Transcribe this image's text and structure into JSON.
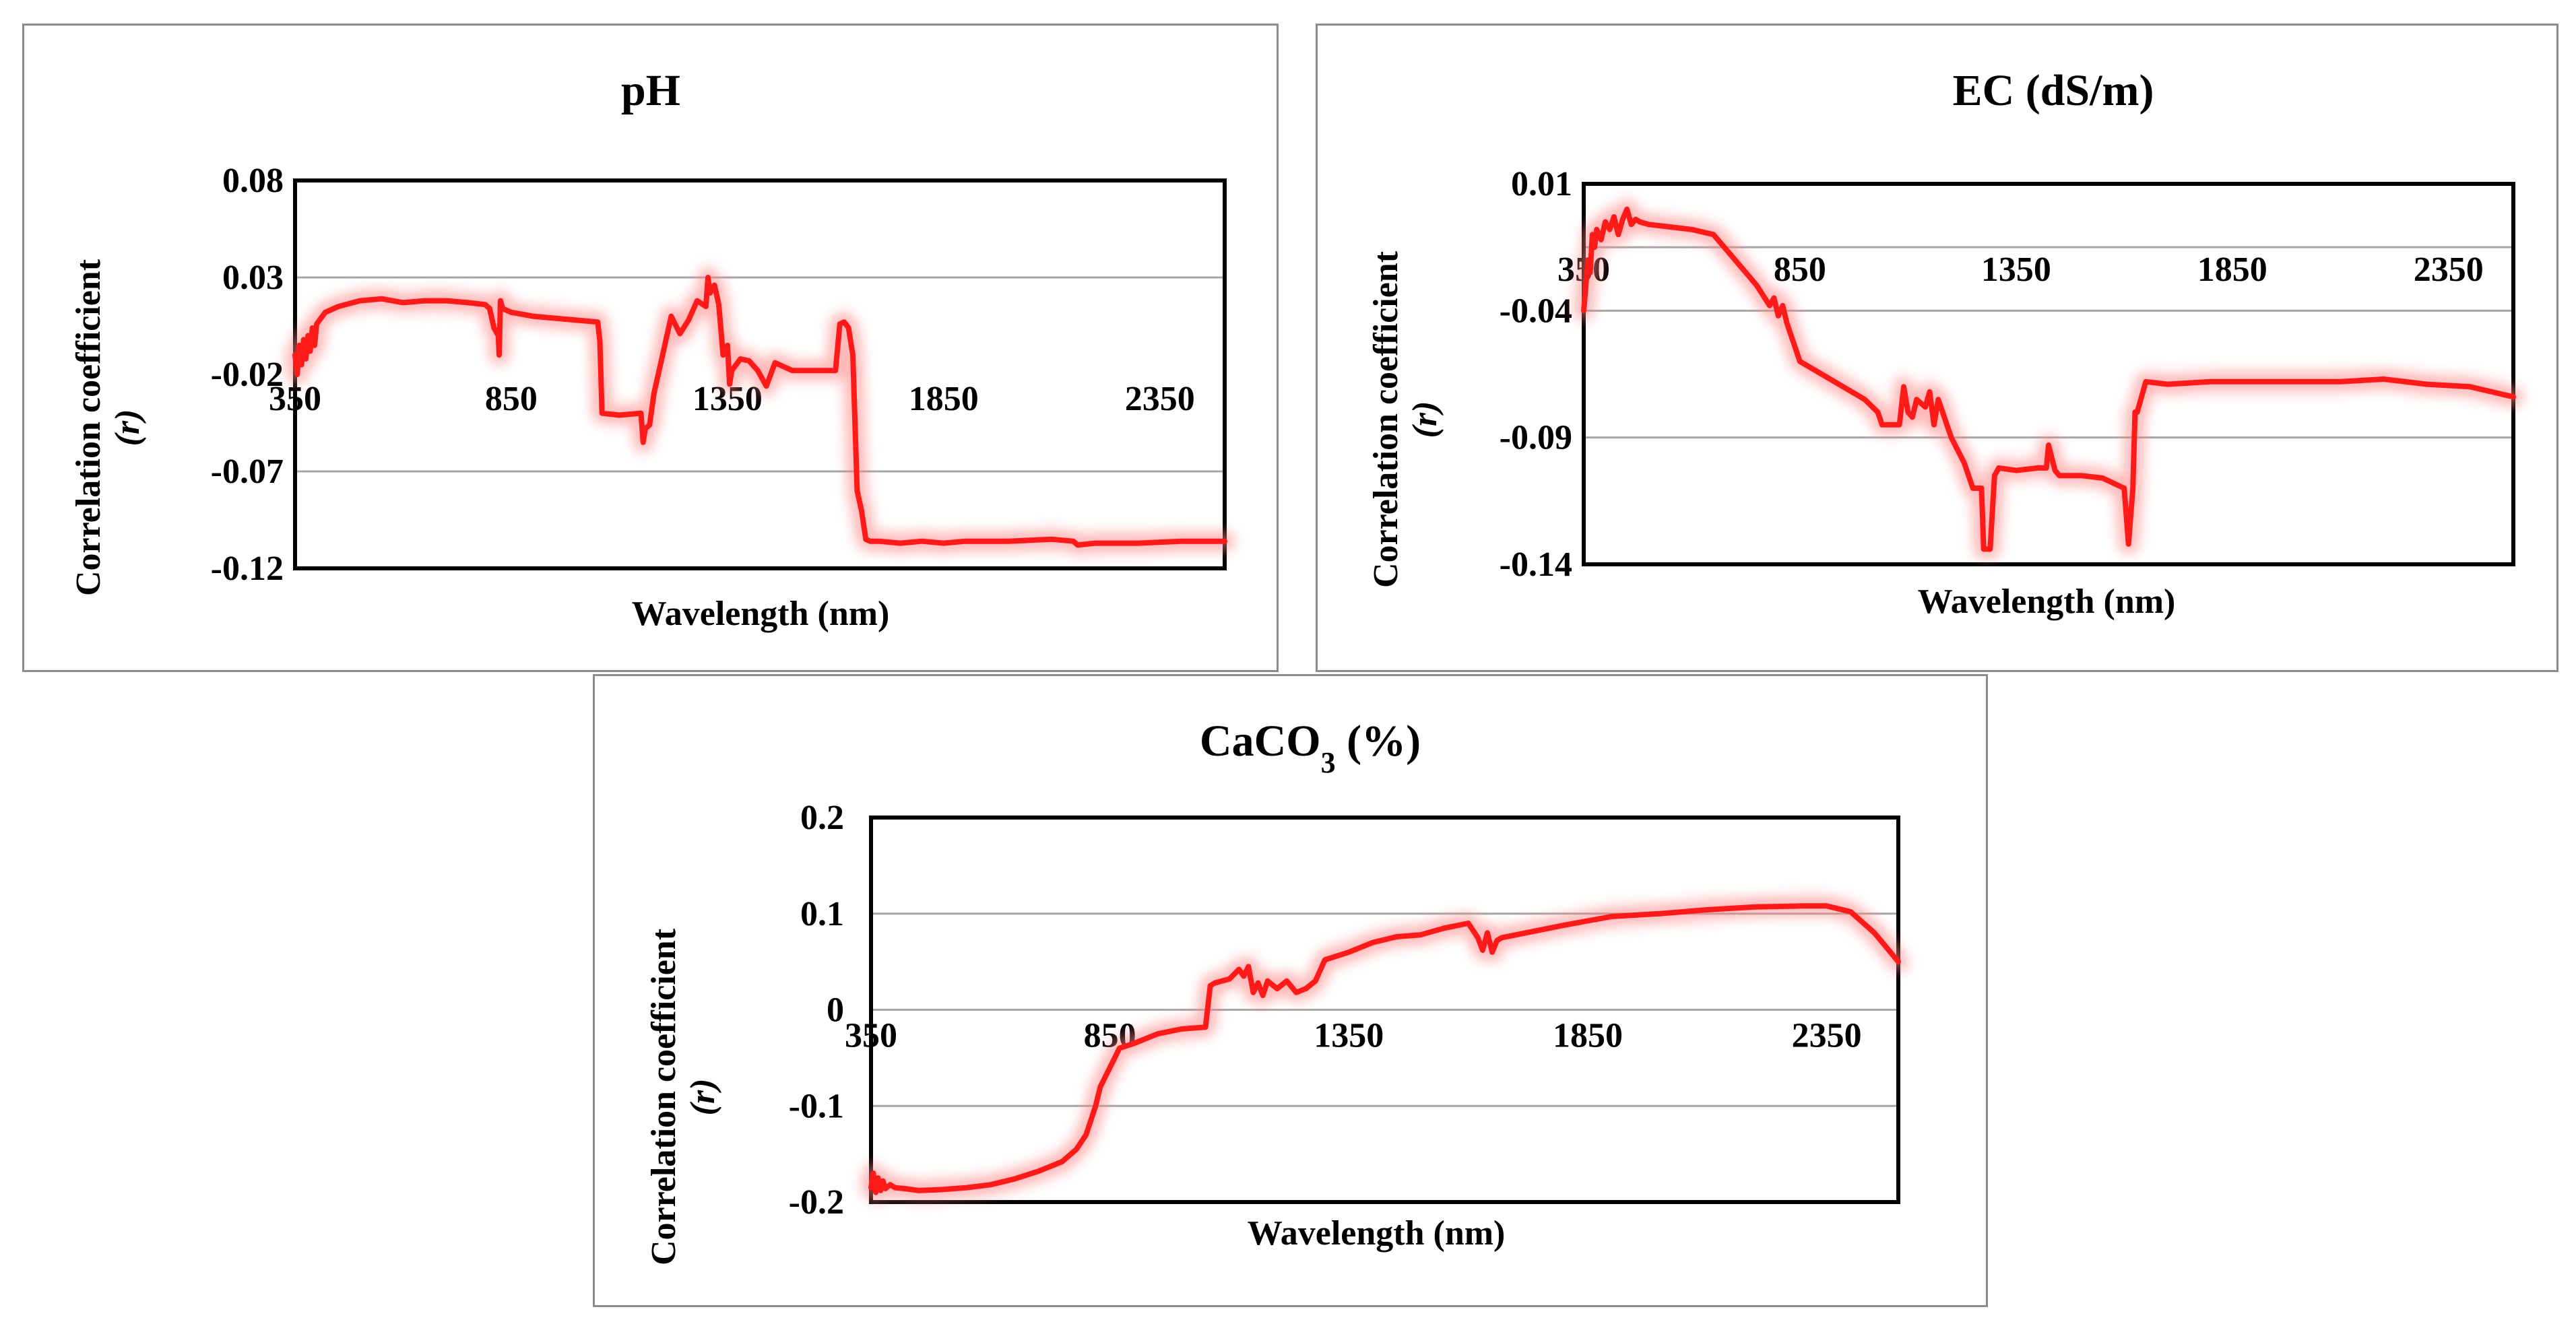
{
  "colors": {
    "series": "#ff1a1a",
    "glow": "#ff8080",
    "gridline": "#a6a6a6",
    "frame": "#000000",
    "panel_border": "#8c8c8c"
  },
  "chart_data": [
    {
      "id": "ph",
      "type": "line",
      "title": "pH",
      "title_sub": "",
      "title_suffix": "",
      "xlabel": "Wavelength (nm)",
      "ylabel": "Correlation coefficient",
      "ylabel_symbol": "(r)",
      "xlim": [
        350,
        2500
      ],
      "ylim": [
        -0.12,
        0.08
      ],
      "xticks": [
        350,
        850,
        1350,
        1850,
        2350
      ],
      "xtick_labels": [
        "350",
        "850",
        "1350",
        "1850",
        "2350"
      ],
      "yticks": [
        0.08,
        0.03,
        -0.02,
        -0.07,
        -0.12
      ],
      "ytick_labels": [
        "0.08",
        "0.03",
        "-0.02",
        "-0.07",
        "-0.12"
      ],
      "gridlines": [
        0.03,
        -0.07
      ],
      "xaxis_at": -0.02,
      "series": [
        {
          "name": "pH",
          "x": [
            350,
            355,
            360,
            365,
            370,
            375,
            380,
            385,
            390,
            395,
            400,
            420,
            450,
            500,
            550,
            600,
            650,
            700,
            750,
            790,
            800,
            810,
            820,
            822,
            825,
            830,
            850,
            900,
            950,
            1000,
            1050,
            1055,
            1060,
            1100,
            1150,
            1155,
            1160,
            1170,
            1180,
            1200,
            1220,
            1240,
            1260,
            1280,
            1300,
            1305,
            1310,
            1320,
            1330,
            1340,
            1350,
            1355,
            1360,
            1380,
            1400,
            1420,
            1440,
            1460,
            1480,
            1500,
            1550,
            1600,
            1610,
            1620,
            1630,
            1640,
            1650,
            1660,
            1670,
            1680,
            1700,
            1750,
            1800,
            1850,
            1900,
            2000,
            2100,
            2150,
            2160,
            2200,
            2300,
            2400,
            2500
          ],
          "y": [
            -0.01,
            -0.02,
            -0.005,
            -0.015,
            -0.002,
            -0.012,
            0.0,
            -0.008,
            0.004,
            -0.005,
            0.006,
            0.012,
            0.015,
            0.018,
            0.019,
            0.017,
            0.018,
            0.018,
            0.017,
            0.016,
            0.014,
            0.004,
            0.0,
            -0.01,
            0.018,
            0.014,
            0.012,
            0.01,
            0.009,
            0.008,
            0.007,
            -0.003,
            -0.04,
            -0.041,
            -0.04,
            -0.055,
            -0.048,
            -0.046,
            -0.03,
            -0.01,
            0.01,
            0.001,
            0.008,
            0.018,
            0.015,
            0.03,
            0.022,
            0.026,
            0.016,
            -0.01,
            -0.005,
            -0.025,
            -0.018,
            -0.012,
            -0.013,
            -0.018,
            -0.026,
            -0.014,
            -0.016,
            -0.018,
            -0.018,
            -0.018,
            0.006,
            0.007,
            0.004,
            -0.01,
            -0.08,
            -0.09,
            -0.105,
            -0.106,
            -0.106,
            -0.107,
            -0.106,
            -0.107,
            -0.106,
            -0.106,
            -0.105,
            -0.106,
            -0.108,
            -0.107,
            -0.107,
            -0.106,
            -0.106
          ]
        }
      ]
    },
    {
      "id": "ec",
      "type": "line",
      "title": "EC (dS/m)",
      "title_sub": "",
      "title_suffix": "",
      "xlabel": "Wavelength (nm)",
      "ylabel": "Correlation coefficient",
      "ylabel_symbol": "(r)",
      "xlim": [
        350,
        2500
      ],
      "ylim": [
        -0.14,
        0.01
      ],
      "xticks": [
        350,
        850,
        1350,
        1850,
        2350
      ],
      "xtick_labels": [
        "350",
        "850",
        "1350",
        "1850",
        "2350"
      ],
      "yticks": [
        0.01,
        -0.04,
        -0.09,
        -0.14
      ],
      "ytick_labels": [
        "0.01",
        "-0.04",
        "-0.09",
        "-0.14"
      ],
      "gridlines": [
        -0.09,
        -0.04,
        -0.015
      ],
      "xaxis_at": -0.015,
      "series": [
        {
          "name": "EC (dS/m)",
          "x": [
            350,
            355,
            360,
            365,
            370,
            375,
            380,
            390,
            400,
            410,
            420,
            430,
            440,
            450,
            460,
            470,
            480,
            500,
            550,
            600,
            650,
            700,
            750,
            780,
            790,
            800,
            810,
            820,
            830,
            850,
            900,
            950,
            1000,
            1030,
            1040,
            1050,
            1080,
            1090,
            1100,
            1110,
            1120,
            1140,
            1150,
            1160,
            1170,
            1180,
            1200,
            1230,
            1250,
            1270,
            1275,
            1290,
            1300,
            1310,
            1350,
            1400,
            1420,
            1425,
            1440,
            1450,
            1500,
            1550,
            1600,
            1610,
            1620,
            1625,
            1630,
            1650,
            1700,
            1800,
            1900,
            2000,
            2100,
            2200,
            2300,
            2400,
            2500
          ],
          "y": [
            -0.04,
            -0.03,
            -0.02,
            -0.025,
            -0.01,
            -0.015,
            -0.008,
            -0.012,
            -0.005,
            -0.008,
            -0.003,
            -0.01,
            -0.004,
            0.0,
            -0.006,
            -0.004,
            -0.005,
            -0.006,
            -0.007,
            -0.008,
            -0.01,
            -0.02,
            -0.03,
            -0.038,
            -0.035,
            -0.042,
            -0.038,
            -0.045,
            -0.05,
            -0.06,
            -0.065,
            -0.07,
            -0.075,
            -0.08,
            -0.085,
            -0.085,
            -0.085,
            -0.07,
            -0.08,
            -0.082,
            -0.075,
            -0.078,
            -0.072,
            -0.085,
            -0.075,
            -0.08,
            -0.09,
            -0.1,
            -0.11,
            -0.11,
            -0.134,
            -0.134,
            -0.105,
            -0.102,
            -0.103,
            -0.102,
            -0.102,
            -0.093,
            -0.103,
            -0.105,
            -0.105,
            -0.106,
            -0.11,
            -0.132,
            -0.11,
            -0.08,
            -0.08,
            -0.068,
            -0.069,
            -0.068,
            -0.068,
            -0.068,
            -0.068,
            -0.067,
            -0.069,
            -0.07,
            -0.074
          ]
        }
      ]
    },
    {
      "id": "caco3",
      "type": "line",
      "title": "CaCO",
      "title_sub": "3",
      "title_suffix": " (%)",
      "xlabel": "Wavelength (nm)",
      "ylabel": "Correlation coefficient",
      "ylabel_symbol": "(r)",
      "xlim": [
        350,
        2500
      ],
      "ylim": [
        -0.2,
        0.2
      ],
      "xticks": [
        350,
        850,
        1350,
        1850,
        2350
      ],
      "xtick_labels": [
        "350",
        "850",
        "1350",
        "1850",
        "2350"
      ],
      "yticks": [
        0.2,
        0.1,
        0,
        -0.1,
        -0.2
      ],
      "ytick_labels": [
        "0.2",
        "0.1",
        "0",
        "-0.1",
        "-0.2"
      ],
      "gridlines": [
        0.1,
        0,
        -0.1
      ],
      "xaxis_at": 0,
      "series": [
        {
          "name": "CaCO3 (%)",
          "x": [
            350,
            355,
            360,
            365,
            370,
            375,
            380,
            390,
            400,
            420,
            450,
            500,
            550,
            600,
            650,
            700,
            750,
            780,
            800,
            810,
            820,
            830,
            850,
            870,
            900,
            950,
            1000,
            1050,
            1060,
            1070,
            1100,
            1120,
            1130,
            1140,
            1150,
            1160,
            1170,
            1180,
            1200,
            1220,
            1240,
            1260,
            1280,
            1300,
            1350,
            1400,
            1450,
            1500,
            1550,
            1600,
            1620,
            1630,
            1640,
            1650,
            1660,
            1670,
            1700,
            1800,
            1900,
            2000,
            2100,
            2200,
            2300,
            2350,
            2400,
            2450,
            2500
          ],
          "y": [
            -0.185,
            -0.17,
            -0.19,
            -0.175,
            -0.188,
            -0.178,
            -0.186,
            -0.182,
            -0.185,
            -0.186,
            -0.188,
            -0.187,
            -0.185,
            -0.182,
            -0.176,
            -0.168,
            -0.158,
            -0.145,
            -0.13,
            -0.115,
            -0.1,
            -0.08,
            -0.06,
            -0.04,
            -0.035,
            -0.025,
            -0.02,
            -0.018,
            0.025,
            0.028,
            0.032,
            0.042,
            0.035,
            0.045,
            0.018,
            0.028,
            0.015,
            0.03,
            0.022,
            0.03,
            0.018,
            0.022,
            0.03,
            0.052,
            0.06,
            0.07,
            0.076,
            0.078,
            0.085,
            0.09,
            0.075,
            0.062,
            0.08,
            0.06,
            0.072,
            0.075,
            0.078,
            0.088,
            0.097,
            0.1,
            0.104,
            0.107,
            0.108,
            0.108,
            0.102,
            0.08,
            0.05
          ]
        }
      ]
    }
  ]
}
